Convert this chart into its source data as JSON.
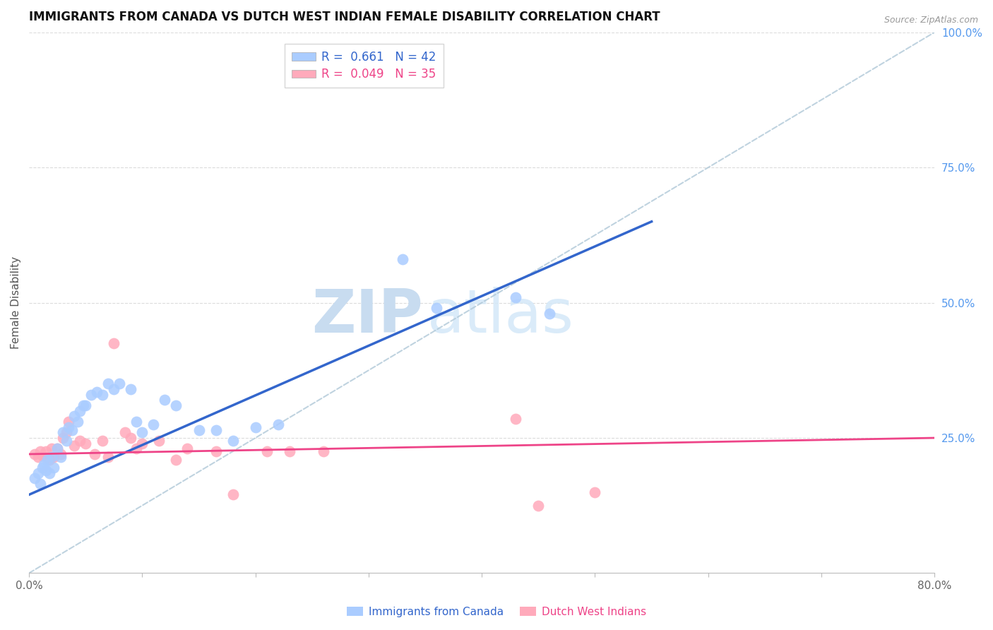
{
  "title": "IMMIGRANTS FROM CANADA VS DUTCH WEST INDIAN FEMALE DISABILITY CORRELATION CHART",
  "source": "Source: ZipAtlas.com",
  "ylabel": "Female Disability",
  "x_min": 0.0,
  "x_max": 0.8,
  "y_min": 0.0,
  "y_max": 1.0,
  "blue_r": 0.661,
  "blue_n": 42,
  "pink_r": 0.049,
  "pink_n": 35,
  "blue_scatter_x": [
    0.005,
    0.008,
    0.01,
    0.012,
    0.013,
    0.015,
    0.016,
    0.018,
    0.02,
    0.022,
    0.025,
    0.028,
    0.03,
    0.033,
    0.035,
    0.038,
    0.04,
    0.043,
    0.045,
    0.048,
    0.05,
    0.055,
    0.06,
    0.065,
    0.07,
    0.075,
    0.08,
    0.09,
    0.095,
    0.1,
    0.11,
    0.12,
    0.13,
    0.15,
    0.165,
    0.18,
    0.2,
    0.22,
    0.33,
    0.36,
    0.43,
    0.46
  ],
  "blue_scatter_y": [
    0.175,
    0.185,
    0.165,
    0.195,
    0.2,
    0.19,
    0.21,
    0.185,
    0.215,
    0.195,
    0.23,
    0.215,
    0.26,
    0.245,
    0.27,
    0.265,
    0.29,
    0.28,
    0.3,
    0.31,
    0.31,
    0.33,
    0.335,
    0.33,
    0.35,
    0.34,
    0.35,
    0.34,
    0.28,
    0.26,
    0.275,
    0.32,
    0.31,
    0.265,
    0.265,
    0.245,
    0.27,
    0.275,
    0.58,
    0.49,
    0.51,
    0.48
  ],
  "pink_scatter_x": [
    0.005,
    0.008,
    0.01,
    0.012,
    0.015,
    0.018,
    0.02,
    0.022,
    0.025,
    0.028,
    0.03,
    0.033,
    0.035,
    0.04,
    0.045,
    0.05,
    0.058,
    0.065,
    0.07,
    0.075,
    0.085,
    0.09,
    0.095,
    0.1,
    0.115,
    0.13,
    0.14,
    0.165,
    0.18,
    0.21,
    0.23,
    0.26,
    0.43,
    0.45,
    0.5
  ],
  "pink_scatter_y": [
    0.22,
    0.215,
    0.225,
    0.218,
    0.225,
    0.21,
    0.23,
    0.215,
    0.23,
    0.22,
    0.25,
    0.26,
    0.28,
    0.235,
    0.245,
    0.24,
    0.22,
    0.245,
    0.215,
    0.425,
    0.26,
    0.25,
    0.23,
    0.24,
    0.245,
    0.21,
    0.23,
    0.225,
    0.145,
    0.225,
    0.225,
    0.225,
    0.285,
    0.125,
    0.15
  ],
  "blue_line_x0": 0.0,
  "blue_line_y0": 0.145,
  "blue_line_x1": 0.55,
  "blue_line_y1": 0.65,
  "pink_line_x0": 0.0,
  "pink_line_y0": 0.22,
  "pink_line_x1": 0.8,
  "pink_line_y1": 0.25,
  "blue_line_color": "#3366cc",
  "pink_line_color": "#ee4488",
  "scatter_blue_color": "#aaccff",
  "scatter_pink_color": "#ffaabb",
  "grid_color": "#cccccc",
  "bg_color": "#ffffff",
  "watermark_zip": "ZIP",
  "watermark_atlas": "atlas",
  "watermark_color": "#ddeeff",
  "title_fontsize": 12,
  "axis_label_fontsize": 11,
  "tick_fontsize": 11,
  "legend_fontsize": 12
}
